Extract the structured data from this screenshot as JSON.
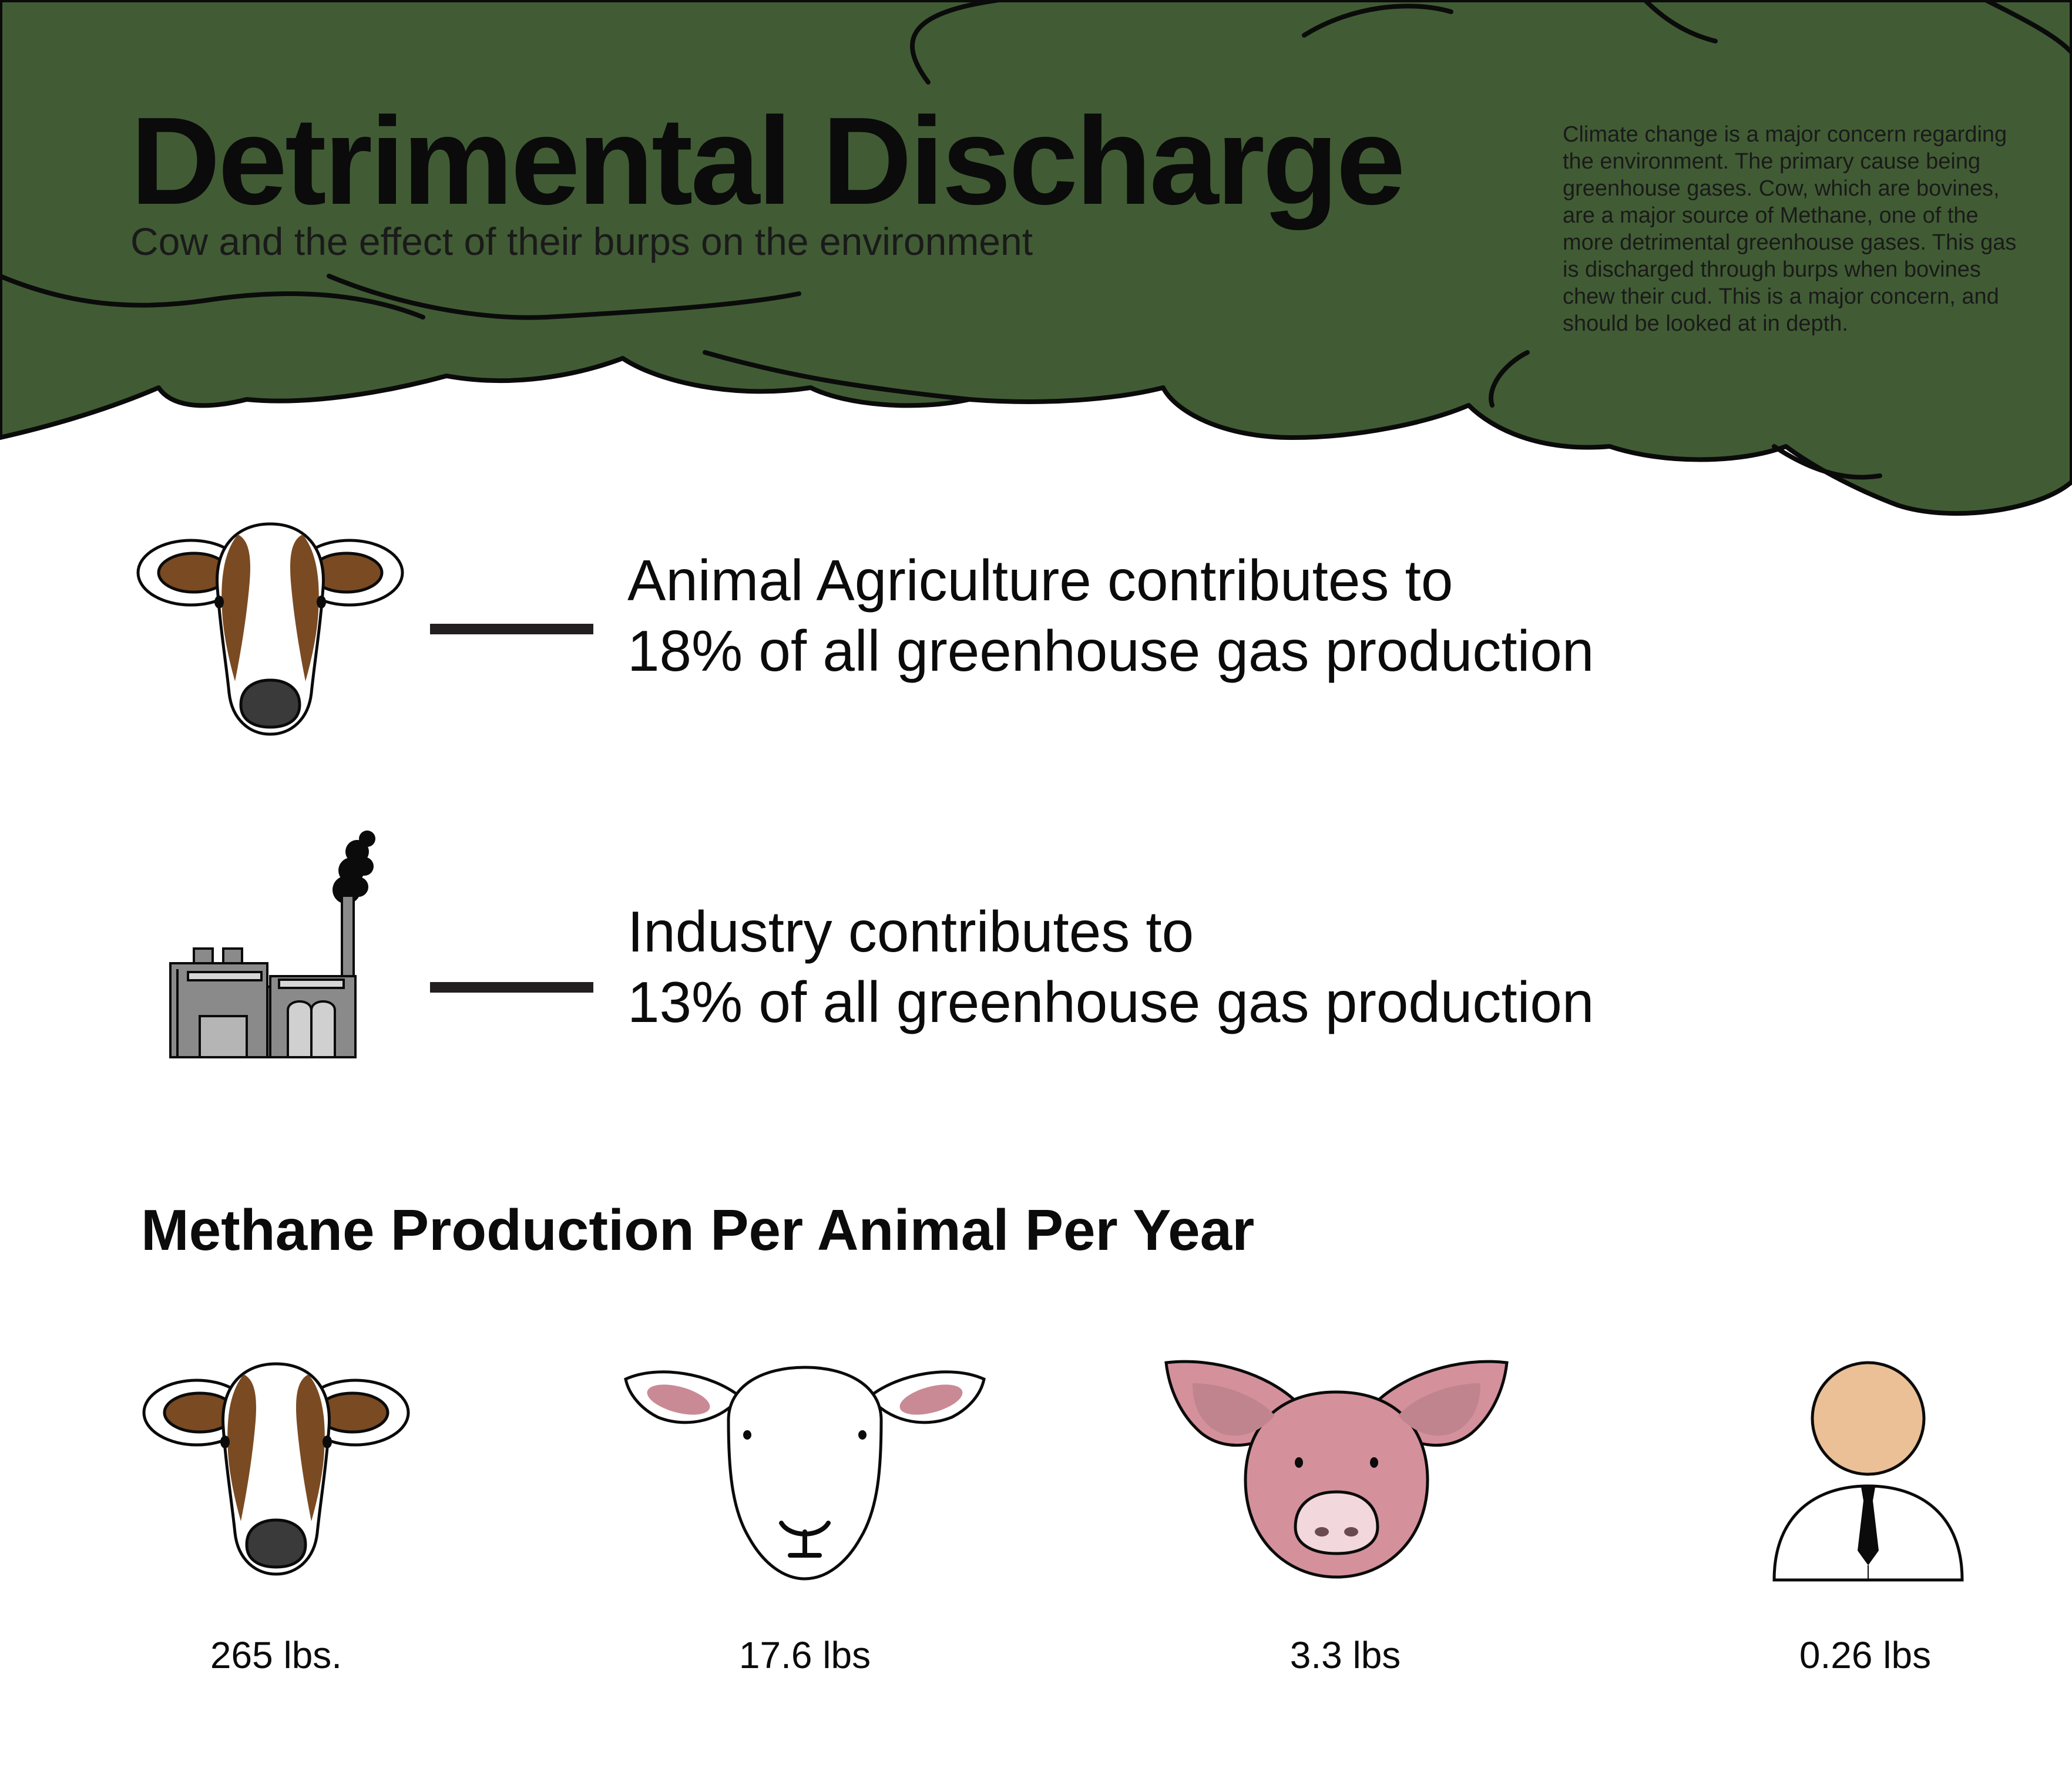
{
  "header": {
    "title": "Detrimental Discharge",
    "subtitle": "Cow and the effect of their burps on the environment",
    "intro": "Climate change is a major concern regarding the environment. The primary cause being greenhouse gases. Cow, which are bovines, are a major source of Methane, one of the more detrimental greenhouse gases. This gas is discharged through burps when bovines chew their cud. This is a major concern, and should be looked at in depth."
  },
  "stats": [
    {
      "line1": "Animal Agriculture contributes to",
      "line2": "18% of all greenhouse gas production",
      "icon": "cow-head-icon"
    },
    {
      "line1": "Industry contributes to",
      "line2": "13% of all greenhouse gas production",
      "icon": "factory-icon"
    }
  ],
  "methane": {
    "heading": "Methane Production Per Animal Per Year",
    "items": [
      {
        "animal": "cow",
        "amount": "265 lbs."
      },
      {
        "animal": "sheep",
        "amount": "17.6 lbs"
      },
      {
        "animal": "pig",
        "amount": "3.3 lbs"
      },
      {
        "animal": "human",
        "amount": "0.26 lbs"
      }
    ]
  },
  "colors": {
    "cloud": "#415c34",
    "cow_brown": "#7a4a22",
    "pig_pink": "#d4919b",
    "sheep_ear": "#c98a95",
    "human_skin": "#ebc097",
    "factory_gray": "#8a8a8a"
  }
}
